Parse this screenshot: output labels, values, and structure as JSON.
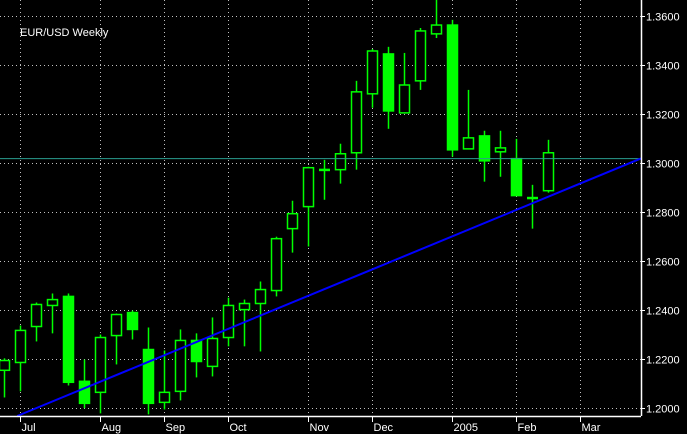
{
  "chart_data": {
    "type": "candlestick",
    "title": "EUR/USD Weekly",
    "ylim": [
      1.2,
      1.36
    ],
    "y_ticks": [
      "1.2000",
      "1.2200",
      "1.2400",
      "1.2600",
      "1.2800",
      "1.3000",
      "1.3200",
      "1.3400",
      "1.3600"
    ],
    "x_ticks": [
      {
        "label": "Jul",
        "date": "2004-06-27"
      },
      {
        "label": "Aug",
        "date": "2004-08-01"
      },
      {
        "label": "Sep",
        "date": "2004-08-29"
      },
      {
        "label": "Oct",
        "date": "2004-09-26"
      },
      {
        "label": "Nov",
        "date": "2004-10-31"
      },
      {
        "label": "Dec",
        "date": "2004-11-28"
      },
      {
        "label": "2005",
        "date": "2005-01-02"
      },
      {
        "label": "Feb",
        "date": "2005-01-30"
      },
      {
        "label": "Mar",
        "date": "2005-02-27"
      }
    ],
    "grid": true,
    "colors": {
      "background": "#000000",
      "candle": "#00ff00",
      "trendline": "#0000ff",
      "current_price_line": "#2a9d8f",
      "grid": "#c0c0c0",
      "axis": "#ffffff"
    },
    "current_price": 1.3017,
    "trendline": [
      {
        "date": "2004-07-04",
        "price": 1.1997
      },
      {
        "date": "2005-03-20",
        "price": 1.2996
      }
    ],
    "candles": [
      {
        "date": "2004-06-20",
        "o": 1.2152,
        "h": 1.2201,
        "l": 1.2041,
        "c": 1.2192
      },
      {
        "date": "2004-06-27",
        "o": 1.2184,
        "h": 1.2335,
        "l": 1.2066,
        "c": 1.2315
      },
      {
        "date": "2004-07-04",
        "o": 1.2331,
        "h": 1.2429,
        "l": 1.227,
        "c": 1.2421
      },
      {
        "date": "2004-07-11",
        "o": 1.2417,
        "h": 1.2466,
        "l": 1.2303,
        "c": 1.2441
      },
      {
        "date": "2004-07-18",
        "o": 1.2454,
        "h": 1.2466,
        "l": 1.209,
        "c": 1.2103
      },
      {
        "date": "2004-07-25",
        "o": 1.2107,
        "h": 1.2196,
        "l": 1.1997,
        "c": 1.2017
      },
      {
        "date": "2004-08-01",
        "o": 1.2062,
        "h": 1.2298,
        "l": 1.1976,
        "c": 1.2286
      },
      {
        "date": "2004-08-08",
        "o": 1.2294,
        "h": 1.2384,
        "l": 1.2176,
        "c": 1.238
      },
      {
        "date": "2004-08-15",
        "o": 1.2388,
        "h": 1.2396,
        "l": 1.2278,
        "c": 1.2319
      },
      {
        "date": "2004-08-22",
        "o": 1.2237,
        "h": 1.2327,
        "l": 1.1972,
        "c": 1.2017
      },
      {
        "date": "2004-08-29",
        "o": 1.2021,
        "h": 1.2233,
        "l": 1.1992,
        "c": 1.2062
      },
      {
        "date": "2004-09-05",
        "o": 1.2066,
        "h": 1.2319,
        "l": 1.2029,
        "c": 1.2274
      },
      {
        "date": "2004-09-12",
        "o": 1.2274,
        "h": 1.2303,
        "l": 1.2123,
        "c": 1.2188
      },
      {
        "date": "2004-09-19",
        "o": 1.2168,
        "h": 1.2368,
        "l": 1.2127,
        "c": 1.2282
      },
      {
        "date": "2004-09-26",
        "o": 1.2286,
        "h": 1.2449,
        "l": 1.225,
        "c": 1.2417
      },
      {
        "date": "2004-10-03",
        "o": 1.24,
        "h": 1.2441,
        "l": 1.225,
        "c": 1.2425
      },
      {
        "date": "2004-10-10",
        "o": 1.2425,
        "h": 1.2515,
        "l": 1.2229,
        "c": 1.2482
      },
      {
        "date": "2004-10-17",
        "o": 1.2478,
        "h": 1.2698,
        "l": 1.2454,
        "c": 1.269
      },
      {
        "date": "2004-10-24",
        "o": 1.2731,
        "h": 1.2845,
        "l": 1.2633,
        "c": 1.2792
      },
      {
        "date": "2004-10-31",
        "o": 1.2821,
        "h": 1.2984,
        "l": 1.2658,
        "c": 1.298
      },
      {
        "date": "2004-11-07",
        "o": 1.2972,
        "h": 1.3012,
        "l": 1.2849,
        "c": 1.2972
      },
      {
        "date": "2004-11-14",
        "o": 1.2972,
        "h": 1.3078,
        "l": 1.2915,
        "c": 1.3037
      },
      {
        "date": "2004-11-21",
        "o": 1.3041,
        "h": 1.3335,
        "l": 1.2972,
        "c": 1.329
      },
      {
        "date": "2004-11-28",
        "o": 1.3282,
        "h": 1.3465,
        "l": 1.3225,
        "c": 1.3457
      },
      {
        "date": "2004-12-05",
        "o": 1.3445,
        "h": 1.3474,
        "l": 1.3139,
        "c": 1.3212
      },
      {
        "date": "2004-12-12",
        "o": 1.3204,
        "h": 1.3449,
        "l": 1.3204,
        "c": 1.3318
      },
      {
        "date": "2004-12-19",
        "o": 1.3335,
        "h": 1.3551,
        "l": 1.3298,
        "c": 1.3539
      },
      {
        "date": "2004-12-26",
        "o": 1.3527,
        "h": 1.3669,
        "l": 1.351,
        "c": 1.3563
      },
      {
        "date": "2005-01-02",
        "o": 1.3563,
        "h": 1.3584,
        "l": 1.3025,
        "c": 1.3053
      },
      {
        "date": "2005-01-09",
        "o": 1.3057,
        "h": 1.3298,
        "l": 1.3057,
        "c": 1.3102
      },
      {
        "date": "2005-01-16",
        "o": 1.311,
        "h": 1.3131,
        "l": 1.2923,
        "c": 1.3008
      },
      {
        "date": "2005-01-23",
        "o": 1.3045,
        "h": 1.3131,
        "l": 1.2943,
        "c": 1.3061
      },
      {
        "date": "2005-01-30",
        "o": 1.3017,
        "h": 1.3098,
        "l": 1.2866,
        "c": 1.2866
      },
      {
        "date": "2005-02-06",
        "o": 1.2857,
        "h": 1.291,
        "l": 1.2731,
        "c": 1.2857
      },
      {
        "date": "2005-02-13",
        "o": 1.2886,
        "h": 1.3094,
        "l": 1.2878,
        "c": 1.3041
      }
    ]
  }
}
